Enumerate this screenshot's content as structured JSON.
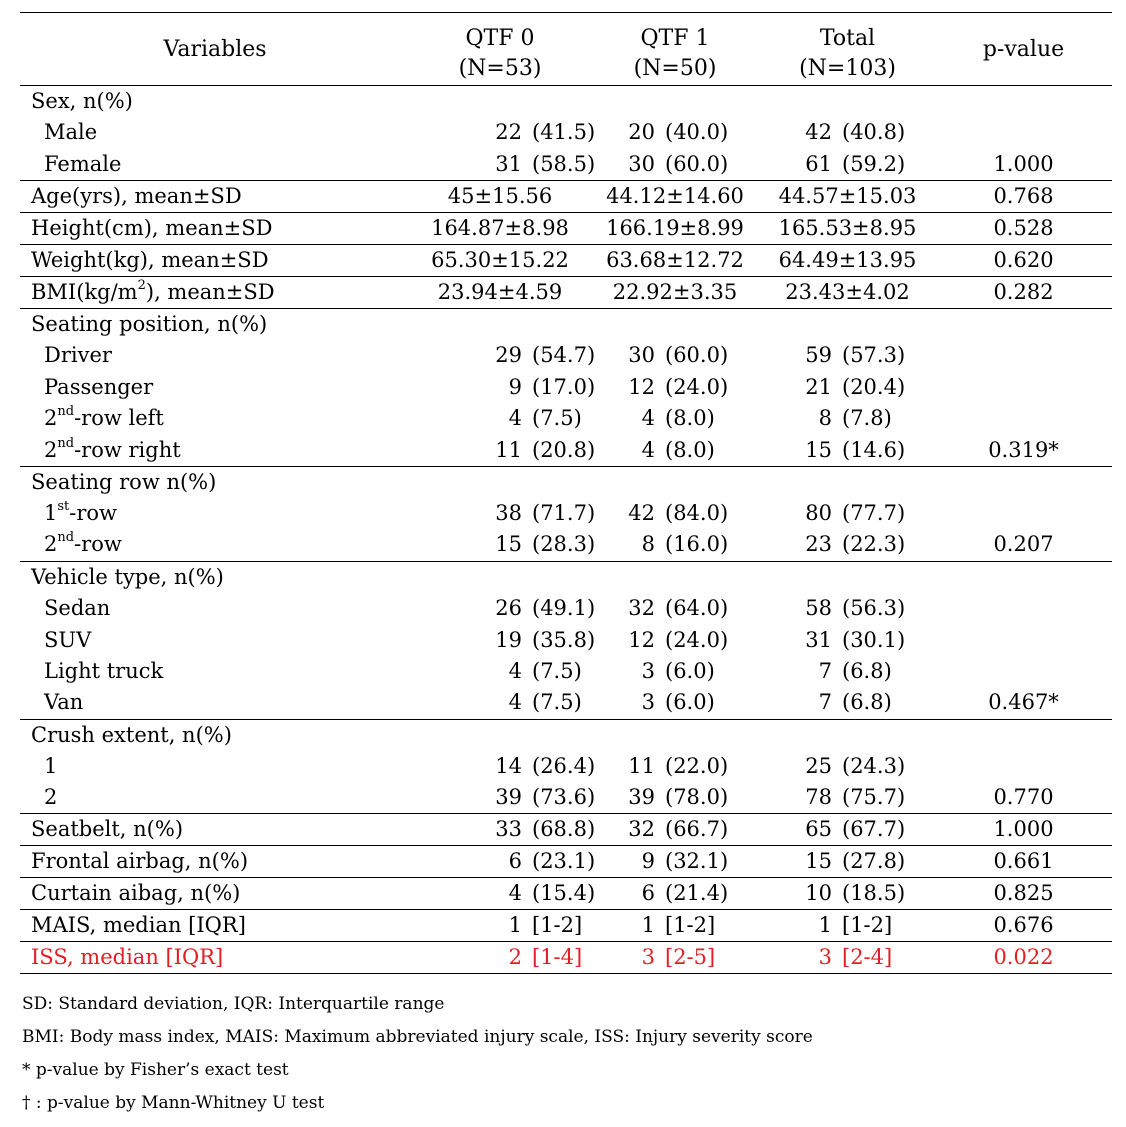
{
  "header": {
    "variables": "Variables",
    "qtf0": "QTF 0",
    "qtf0_n": "(N=53)",
    "qtf1": "QTF 1",
    "qtf1_n": "(N=50)",
    "total": "Total",
    "total_n": "(N=103)",
    "pvalue": "p-value"
  },
  "rows": {
    "sex": {
      "label": "Sex, n(%)"
    },
    "male": {
      "label": "Male",
      "q0n": "22",
      "q0p": "(41.5)",
      "q1n": "20",
      "q1p": "(40.0)",
      "tn": "42",
      "tp": "(40.8)",
      "p": ""
    },
    "female": {
      "label": "Female",
      "q0n": "31",
      "q0p": "(58.5)",
      "q1n": "30",
      "q1p": "(60.0)",
      "tn": "61",
      "tp": "(59.2)",
      "p": "1.000"
    },
    "age": {
      "label": "Age(yrs), mean±SD",
      "q0": "45±15.56",
      "q1": "44.12±14.60",
      "t": "44.57±15.03",
      "p": "0.768"
    },
    "height": {
      "label": "Height(cm), mean±SD",
      "q0": "164.87±8.98",
      "q1": "166.19±8.99",
      "t": "165.53±8.95",
      "p": "0.528"
    },
    "weight": {
      "label": "Weight(kg), mean±SD",
      "q0": "65.30±15.22",
      "q1": "63.68±12.72",
      "t": "64.49±13.95",
      "p": "0.620"
    },
    "bmi": {
      "label_pre": "BMI(kg/m",
      "label_sup": "2",
      "label_post": "), mean±SD",
      "q0": "23.94±4.59",
      "q1": "22.92±3.35",
      "t": "23.43±4.02",
      "p": "0.282"
    },
    "seating_position": {
      "label": "Seating position, n(%)"
    },
    "driver": {
      "label": "Driver",
      "q0n": "29",
      "q0p": "(54.7)",
      "q1n": "30",
      "q1p": "(60.0)",
      "tn": "59",
      "tp": "(57.3)",
      "p": ""
    },
    "passenger": {
      "label": "Passenger",
      "q0n": "9",
      "q0p": "(17.0)",
      "q1n": "12",
      "q1p": "(24.0)",
      "tn": "21",
      "tp": "(20.4)",
      "p": ""
    },
    "row2_left": {
      "label_pre": "2",
      "label_sup": "nd",
      "label_post": "-row left",
      "q0n": "4",
      "q0p": "(7.5)",
      "q1n": "4",
      "q1p": "(8.0)",
      "tn": "8",
      "tp": "(7.8)",
      "p": ""
    },
    "row2_right": {
      "label_pre": "2",
      "label_sup": "nd",
      "label_post": "-row right",
      "q0n": "11",
      "q0p": "(20.8)",
      "q1n": "4",
      "q1p": "(8.0)",
      "tn": "15",
      "tp": "(14.6)",
      "p": "0.319*"
    },
    "seating_row": {
      "label": "Seating row n(%)"
    },
    "row1": {
      "label_pre": "1",
      "label_sup": "st",
      "label_post": "-row",
      "q0n": "38",
      "q0p": "(71.7)",
      "q1n": "42",
      "q1p": "(84.0)",
      "tn": "80",
      "tp": "(77.7)",
      "p": ""
    },
    "row2": {
      "label_pre": "2",
      "label_sup": "nd",
      "label_post": "-row",
      "q0n": "15",
      "q0p": "(28.3)",
      "q1n": "8",
      "q1p": "(16.0)",
      "tn": "23",
      "tp": "(22.3)",
      "p": "0.207"
    },
    "vehicle_type": {
      "label": "Vehicle type, n(%)"
    },
    "sedan": {
      "label": "Sedan",
      "q0n": "26",
      "q0p": "(49.1)",
      "q1n": "32",
      "q1p": "(64.0)",
      "tn": "58",
      "tp": "(56.3)",
      "p": ""
    },
    "suv": {
      "label": "SUV",
      "q0n": "19",
      "q0p": "(35.8)",
      "q1n": "12",
      "q1p": "(24.0)",
      "tn": "31",
      "tp": "(30.1)",
      "p": ""
    },
    "light_truck": {
      "label": "Light truck",
      "q0n": "4",
      "q0p": "(7.5)",
      "q1n": "3",
      "q1p": "(6.0)",
      "tn": "7",
      "tp": "(6.8)",
      "p": ""
    },
    "van": {
      "label": "Van",
      "q0n": "4",
      "q0p": "(7.5)",
      "q1n": "3",
      "q1p": "(6.0)",
      "tn": "7",
      "tp": "(6.8)",
      "p": "0.467*"
    },
    "crush_extent": {
      "label": "Crush extent, n(%)"
    },
    "crush1": {
      "label": "1",
      "q0n": "14",
      "q0p": "(26.4)",
      "q1n": "11",
      "q1p": "(22.0)",
      "tn": "25",
      "tp": "(24.3)",
      "p": ""
    },
    "crush2": {
      "label": "2",
      "q0n": "39",
      "q0p": "(73.6)",
      "q1n": "39",
      "q1p": "(78.0)",
      "tn": "78",
      "tp": "(75.7)",
      "p": "0.770"
    },
    "seatbelt": {
      "label": "Seatbelt, n(%)",
      "q0n": "33",
      "q0p": "(68.8)",
      "q1n": "32",
      "q1p": "(66.7)",
      "tn": "65",
      "tp": "(67.7)",
      "p": "1.000"
    },
    "frontal_airbag": {
      "label": "Frontal airbag, n(%)",
      "q0n": "6",
      "q0p": "(23.1)",
      "q1n": "9",
      "q1p": "(32.1)",
      "tn": "15",
      "tp": "(27.8)",
      "p": "0.661"
    },
    "curtain_airbag": {
      "label": "Curtain aibag, n(%)",
      "q0n": "4",
      "q0p": "(15.4)",
      "q1n": "6",
      "q1p": "(21.4)",
      "tn": "10",
      "tp": "(18.5)",
      "p": "0.825"
    },
    "mais": {
      "label": "MAIS, median [IQR]",
      "q0n": "1",
      "q0p": "[1-2]",
      "q1n": "1",
      "q1p": "[1-2]",
      "tn": "1",
      "tp": "[1-2]",
      "p": "0.676"
    },
    "iss": {
      "label": "ISS, median [IQR]",
      "q0n": "2",
      "q0p": "[1-4]",
      "q1n": "3",
      "q1p": "[2-5]",
      "tn": "3",
      "tp": "[2-4]",
      "p": "0.022"
    }
  },
  "notes": {
    "abbrev1": "SD: Standard deviation, IQR: Interquartile range",
    "abbrev2": "BMI: Body mass index, MAIS: Maximum abbreviated injury scale, ISS: Injury severity score",
    "fisher": "* p-value by Fisher’s exact test",
    "mann_whitney": "† : p-value by Mann-Whitney U test"
  },
  "colors": {
    "text": "#000000",
    "significant": "#e31e24",
    "background": "#ffffff"
  }
}
